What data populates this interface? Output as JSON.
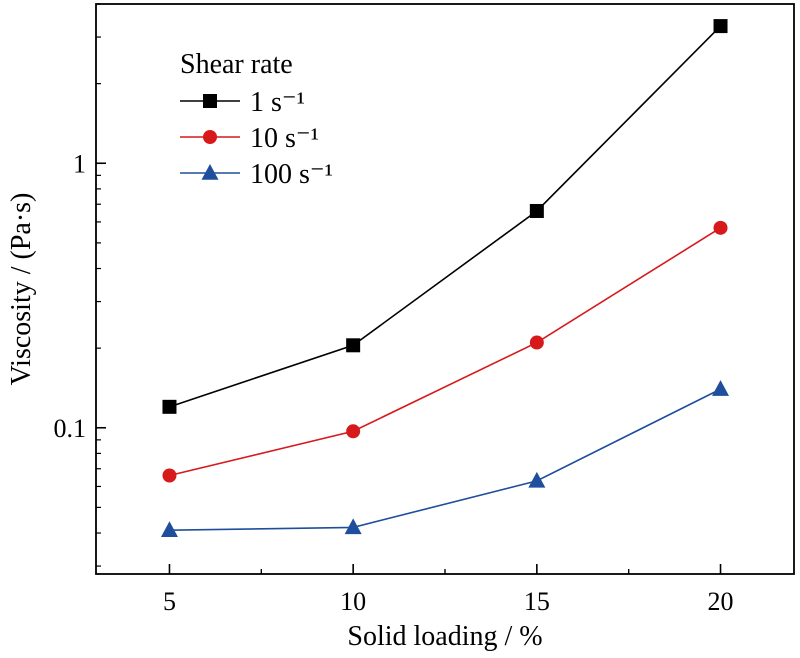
{
  "chart_data": {
    "type": "line",
    "xlabel": "Solid loading / %",
    "ylabel": "Viscosity / (Pa·s)",
    "x": [
      5,
      10,
      15,
      20
    ],
    "xticks": [
      "5",
      "10",
      "15",
      "20"
    ],
    "xlim": [
      3,
      22
    ],
    "ylim": [
      0.028,
      4.0
    ],
    "yscale": "log",
    "yticks": [
      "0.1",
      "1"
    ],
    "grid": false,
    "legend": {
      "title": "Shear rate",
      "placement": "top-left"
    },
    "series": [
      {
        "name": "1 s⁻¹",
        "color": "#000000",
        "marker": "square",
        "values": [
          0.12,
          0.205,
          0.66,
          3.3
        ]
      },
      {
        "name": "10 s⁻¹",
        "color": "#d7191c",
        "marker": "circle",
        "values": [
          0.066,
          0.097,
          0.21,
          0.57
        ]
      },
      {
        "name": "100 s⁻¹",
        "color": "#1f4e9c",
        "marker": "triangle",
        "values": [
          0.041,
          0.042,
          0.063,
          0.14
        ]
      }
    ]
  }
}
